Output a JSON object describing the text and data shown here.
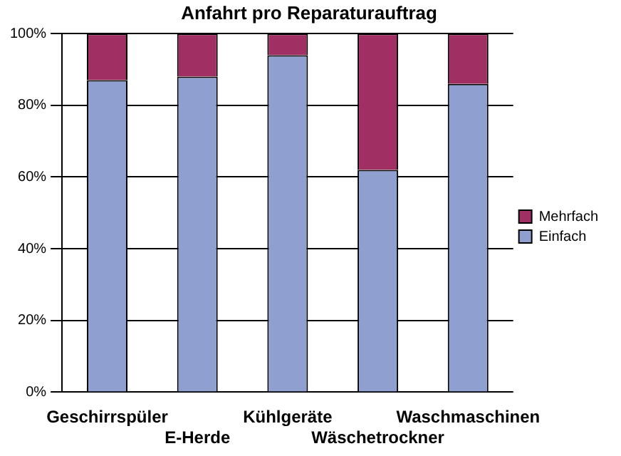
{
  "chart_data": {
    "type": "bar",
    "title": "Anfahrt pro Reparaturauftrag",
    "categories": [
      "Geschirrspüler",
      "E-Herde",
      "Kühlgeräte",
      "Wäschetrockner",
      "Waschmaschinen"
    ],
    "series": [
      {
        "name": "Einfach",
        "color": "#8f9fd0",
        "values": [
          87,
          88,
          94,
          62,
          86
        ]
      },
      {
        "name": "Mehrfach",
        "color": "#a03064",
        "values": [
          13,
          12,
          6,
          38,
          14
        ]
      }
    ],
    "stacked": true,
    "ylim": [
      0,
      100
    ],
    "yticks": [
      {
        "value": 0,
        "label": "0%"
      },
      {
        "value": 20,
        "label": "20%"
      },
      {
        "value": 40,
        "label": "40%"
      },
      {
        "value": 60,
        "label": "60%"
      },
      {
        "value": 80,
        "label": "80%"
      },
      {
        "value": 100,
        "label": "100%"
      }
    ],
    "grid": "y",
    "legend": "right"
  }
}
